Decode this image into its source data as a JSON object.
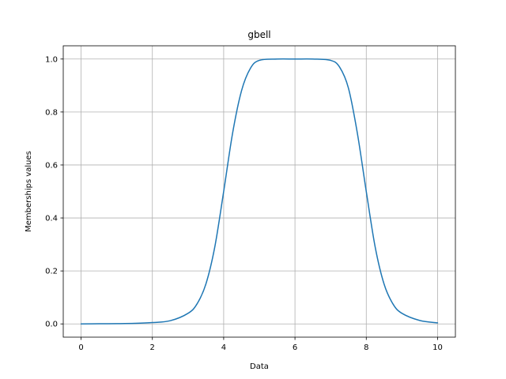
{
  "chart_data": {
    "type": "line",
    "title": "gbell",
    "xlabel": "Data",
    "ylabel": "Memberships values",
    "xlim": [
      -0.5,
      10.5
    ],
    "ylim": [
      -0.05,
      1.05
    ],
    "xticks": [
      0,
      2,
      4,
      6,
      8,
      10
    ],
    "xtick_labels": [
      "0",
      "2",
      "4",
      "6",
      "8",
      "10"
    ],
    "yticks": [
      0.0,
      0.2,
      0.4,
      0.6,
      0.8,
      1.0
    ],
    "ytick_labels": [
      "0.0",
      "0.2",
      "0.4",
      "0.6",
      "0.8",
      "1.0"
    ],
    "grid": true,
    "series": [
      {
        "color": "#1f77b4",
        "x": [
          0,
          0.5,
          1,
          1.5,
          2,
          2.5,
          3,
          3.25,
          3.5,
          3.75,
          4,
          4.25,
          4.5,
          4.75,
          5,
          5.5,
          6,
          6.5,
          7,
          7.25,
          7.5,
          7.75,
          8,
          8.25,
          8.5,
          8.75,
          9,
          9.5,
          10
        ],
        "y": [
          0.0,
          0.0005,
          0.001,
          0.002,
          0.005,
          0.012,
          0.04,
          0.075,
          0.15,
          0.29,
          0.5,
          0.72,
          0.88,
          0.965,
          0.995,
          1.0,
          1.0,
          1.0,
          0.995,
          0.97,
          0.89,
          0.72,
          0.5,
          0.29,
          0.15,
          0.075,
          0.04,
          0.013,
          0.004
        ]
      }
    ]
  }
}
